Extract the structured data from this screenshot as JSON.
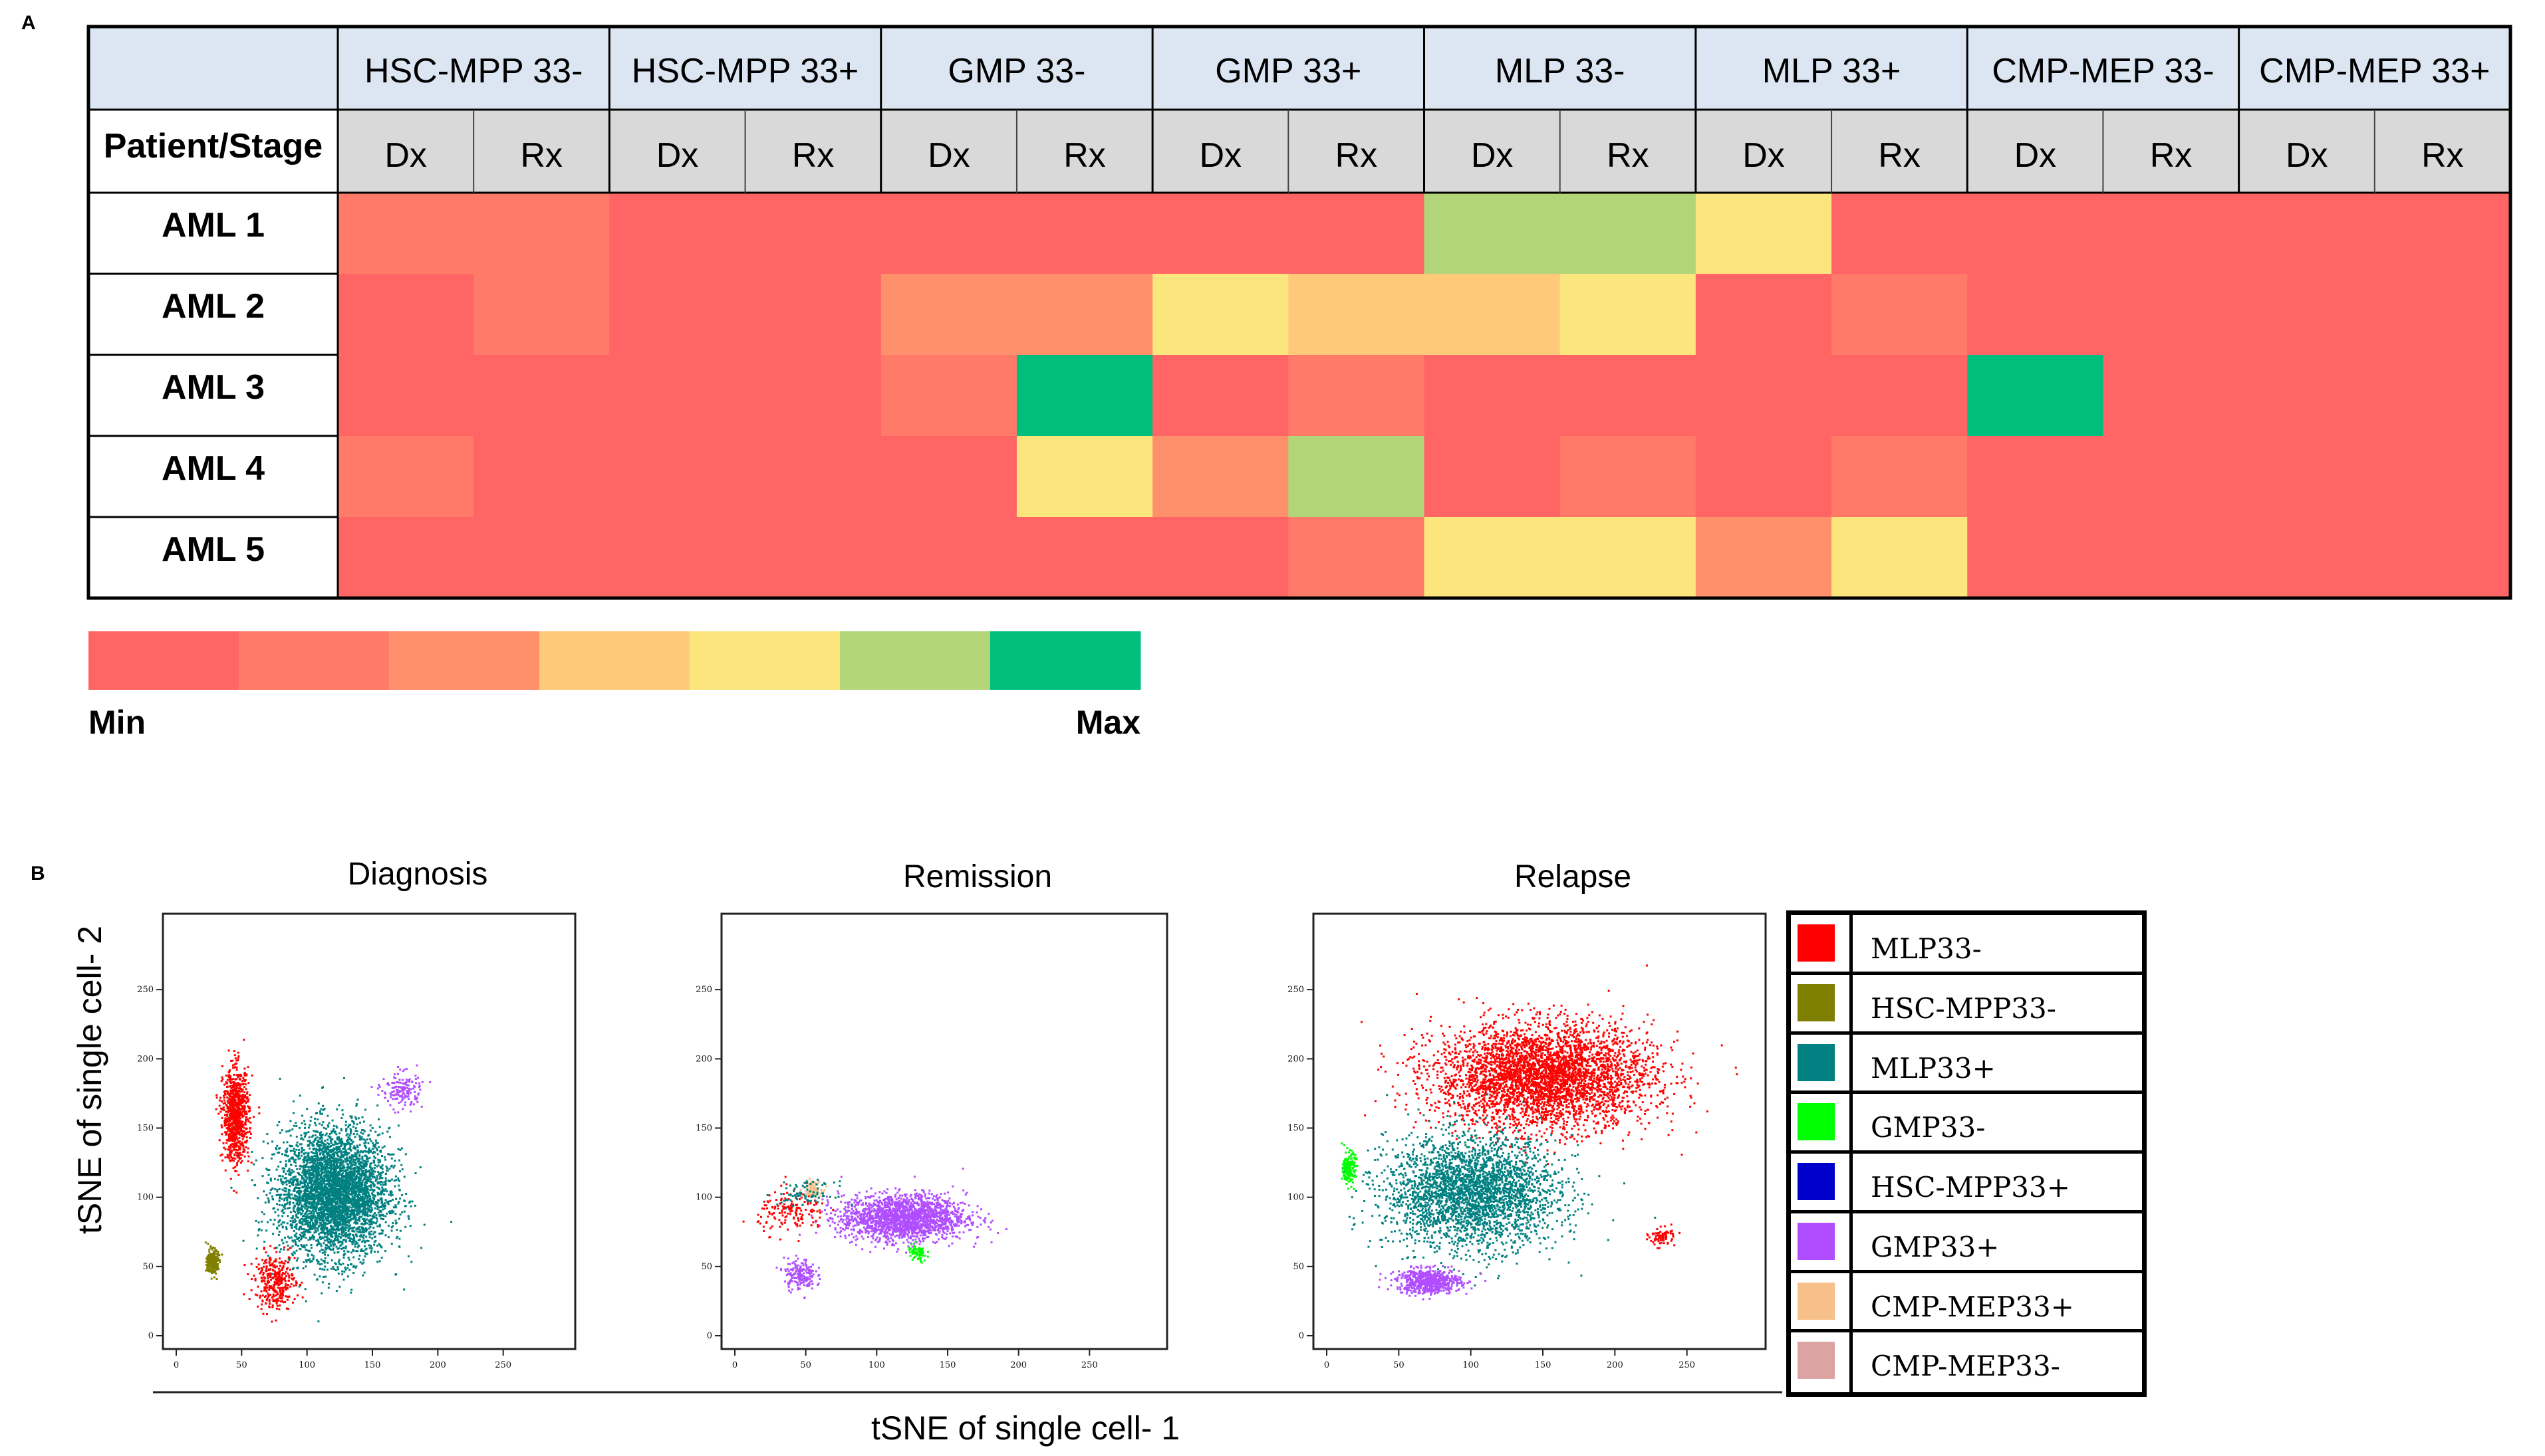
{
  "panels": {
    "a": "A",
    "b": "B"
  },
  "colors": {
    "header_fill": "#dce6f2",
    "subheader_fill": "#d9d9d9",
    "row_label_fill": "#ffffff",
    "scale": [
      "#ff6565",
      "#ff7a68",
      "#ff906c",
      "#ffc97a",
      "#fbe57d",
      "#b3d57a",
      "#00bf7c"
    ]
  },
  "chart_data": [
    {
      "type": "heatmap",
      "title": "",
      "corner_label": "Patient/Stage",
      "groups": [
        "HSC-MPP 33-",
        "HSC-MPP 33+",
        "GMP 33-",
        "GMP 33+",
        "MLP 33-",
        "MLP 33+",
        "CMP-MEP 33-",
        "CMP-MEP 33+"
      ],
      "subcolumns": [
        "Dx",
        "Rx"
      ],
      "rows": [
        "AML 1",
        "AML 2",
        "AML 3",
        "AML 4",
        "AML 5"
      ],
      "value_scale": "ordinal levels 0 (Min) to 6 (Max)",
      "values": [
        [
          1,
          1,
          0,
          0,
          0,
          0,
          0,
          0,
          5,
          5,
          4,
          0,
          0,
          0,
          0,
          0
        ],
        [
          0,
          1,
          0,
          0,
          2,
          2,
          4,
          3,
          3,
          4,
          0,
          1,
          0,
          0,
          0,
          0
        ],
        [
          0,
          0,
          0,
          0,
          1,
          6,
          0,
          1,
          0,
          0,
          0,
          0,
          6,
          0,
          0,
          0
        ],
        [
          1,
          0,
          0,
          0,
          0,
          4,
          2,
          5,
          0,
          1,
          0,
          1,
          0,
          0,
          0,
          0
        ],
        [
          0,
          0,
          0,
          0,
          0,
          0,
          0,
          1,
          4,
          4,
          2,
          4,
          0,
          0,
          0,
          0
        ]
      ],
      "legend": {
        "min_label": "Min",
        "max_label": "Max",
        "levels": 7
      }
    },
    {
      "type": "scatter",
      "xlabel": "tSNE of single cell- 1",
      "ylabel": "tSNE of single cell- 2",
      "xlim": [
        0,
        300
      ],
      "ylim": [
        0,
        300
      ],
      "xticks": [
        "0",
        "50",
        "100",
        "150",
        "200",
        "250"
      ],
      "yticks": [
        "0",
        "50",
        "100",
        "150",
        "200",
        "250"
      ],
      "panels": [
        {
          "title": "Diagnosis",
          "clusters": [
            {
              "series": "MLP33+",
              "cx": 120,
              "cy": 104,
              "sx": 38,
              "sy": 42,
              "n": 4200
            },
            {
              "series": "MLP33-",
              "cx": 45,
              "cy": 160,
              "sx": 9,
              "sy": 30,
              "n": 900
            },
            {
              "series": "MLP33-",
              "cx": 75,
              "cy": 40,
              "sx": 14,
              "sy": 18,
              "n": 350
            },
            {
              "series": "HSC-MPP33-",
              "cx": 27,
              "cy": 54,
              "sx": 4,
              "sy": 8,
              "n": 260
            },
            {
              "series": "GMP33+",
              "cx": 172,
              "cy": 178,
              "sx": 14,
              "sy": 12,
              "n": 160
            }
          ]
        },
        {
          "title": "Remission",
          "clusters": [
            {
              "series": "GMP33+",
              "cx": 118,
              "cy": 86,
              "sx": 40,
              "sy": 15,
              "n": 1900
            },
            {
              "series": "GMP33+",
              "cx": 45,
              "cy": 45,
              "sx": 10,
              "sy": 10,
              "n": 180
            },
            {
              "series": "MLP33-",
              "cx": 40,
              "cy": 90,
              "sx": 22,
              "sy": 14,
              "n": 160
            },
            {
              "series": "GMP33-",
              "cx": 128,
              "cy": 60,
              "sx": 6,
              "sy": 6,
              "n": 70
            },
            {
              "series": "CMP-MEP33+",
              "cx": 54,
              "cy": 107,
              "sx": 6,
              "sy": 5,
              "n": 100
            },
            {
              "series": "MLP33+",
              "cx": 50,
              "cy": 103,
              "sx": 18,
              "sy": 8,
              "n": 80
            }
          ]
        },
        {
          "title": "Relapse",
          "clusters": [
            {
              "series": "MLP33-",
              "cx": 150,
              "cy": 188,
              "sx": 68,
              "sy": 34,
              "n": 4000
            },
            {
              "series": "MLP33+",
              "cx": 100,
              "cy": 104,
              "sx": 54,
              "sy": 36,
              "n": 3000
            },
            {
              "series": "GMP33+",
              "cx": 70,
              "cy": 40,
              "sx": 20,
              "sy": 8,
              "n": 650
            },
            {
              "series": "GMP33-",
              "cx": 15,
              "cy": 122,
              "sx": 4,
              "sy": 10,
              "n": 170
            },
            {
              "series": "MLP33-",
              "cx": 232,
              "cy": 72,
              "sx": 8,
              "sy": 6,
              "n": 80
            }
          ]
        }
      ],
      "series": [
        {
          "name": "MLP33-",
          "color": "#ff0000"
        },
        {
          "name": "HSC-MPP33-",
          "color": "#808000"
        },
        {
          "name": "MLP33+",
          "color": "#008080"
        },
        {
          "name": "GMP33-",
          "color": "#00ff00"
        },
        {
          "name": "HSC-MPP33+",
          "color": "#0000cc"
        },
        {
          "name": "GMP33+",
          "color": "#b04eff"
        },
        {
          "name": "CMP-MEP33+",
          "color": "#f7c08a"
        },
        {
          "name": "CMP-MEP33-",
          "color": "#dca3a3"
        }
      ]
    }
  ]
}
